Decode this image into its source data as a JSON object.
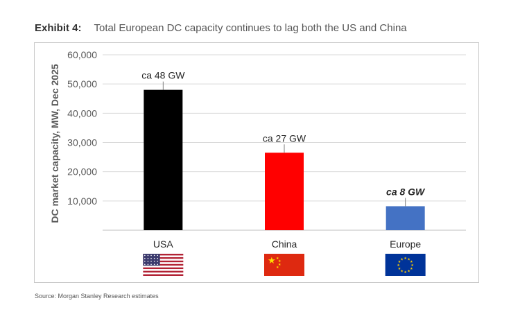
{
  "header": {
    "exhibit_label": "Exhibit 4:",
    "title": "Total European DC capacity continues to lag both the US and China"
  },
  "source": "Source: Morgan Stanley Research estimates",
  "chart_data": {
    "type": "bar",
    "title": "Total European DC capacity continues to lag both the US and China",
    "xlabel": "",
    "ylabel": "DC market capacity, MW, Dec 2025",
    "categories": [
      "USA",
      "China",
      "Europe"
    ],
    "values": [
      48000,
      26500,
      8200
    ],
    "data_labels": [
      "ca 48 GW",
      "ca 27 GW",
      "ca 8 GW"
    ],
    "colors": [
      "#000000",
      "#ff0000",
      "#4472c4"
    ],
    "flag_icons": [
      "us-flag-icon",
      "china-flag-icon",
      "eu-flag-icon"
    ],
    "ylim": [
      0,
      60000
    ],
    "yticks": [
      10000,
      20000,
      30000,
      40000,
      50000,
      60000
    ],
    "ytick_labels": [
      "10,000",
      "20,000",
      "30,000",
      "40,000",
      "50,000",
      "60,000"
    ],
    "grid": true,
    "legend": "none"
  }
}
